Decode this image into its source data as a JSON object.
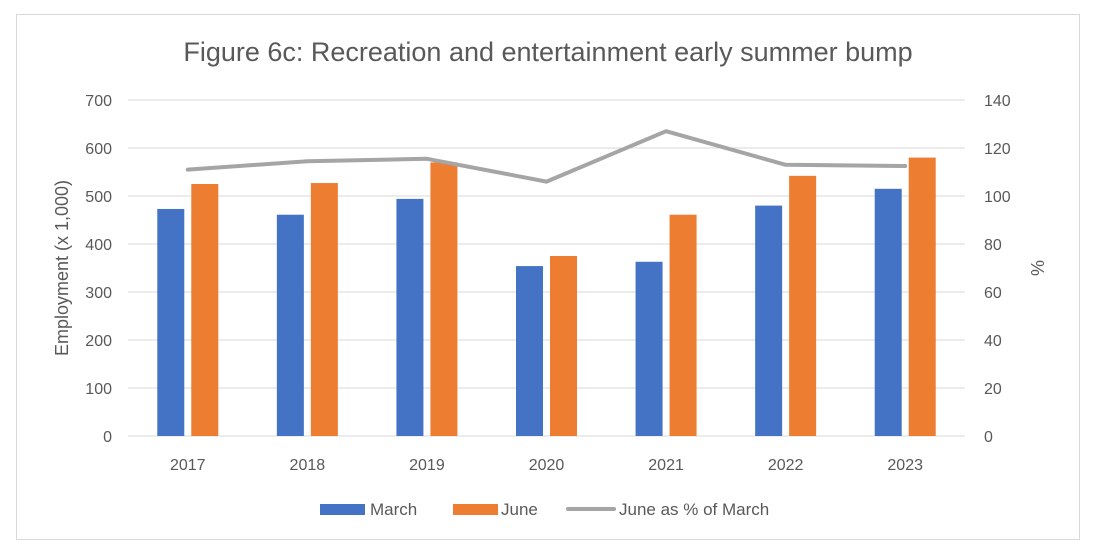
{
  "chart_data": {
    "type": "bar",
    "title": "Figure 6c: Recreation and entertainment early summer bump",
    "categories": [
      "2017",
      "2018",
      "2019",
      "2020",
      "2021",
      "2022",
      "2023"
    ],
    "ylabel": "Employment (x 1,000)",
    "y2label": "%",
    "ylim": [
      0,
      700
    ],
    "y2lim": [
      0,
      140
    ],
    "yticks": [
      0,
      100,
      200,
      300,
      400,
      500,
      600,
      700
    ],
    "y2ticks": [
      0,
      20,
      40,
      60,
      80,
      100,
      120,
      140
    ],
    "grid": true,
    "legend_position": "bottom",
    "series": [
      {
        "name": "March",
        "type": "bar",
        "axis": "left",
        "color": "#4472c4",
        "values": [
          473,
          461,
          494,
          354,
          363,
          480,
          515
        ]
      },
      {
        "name": "June",
        "type": "bar",
        "axis": "left",
        "color": "#ed7d31",
        "values": [
          525,
          527,
          570,
          375,
          461,
          542,
          580
        ]
      },
      {
        "name": "June as % of March",
        "type": "line",
        "axis": "right",
        "color": "#a5a5a5",
        "values": [
          111,
          114.5,
          115.5,
          106,
          127,
          113,
          112.5
        ]
      }
    ]
  }
}
